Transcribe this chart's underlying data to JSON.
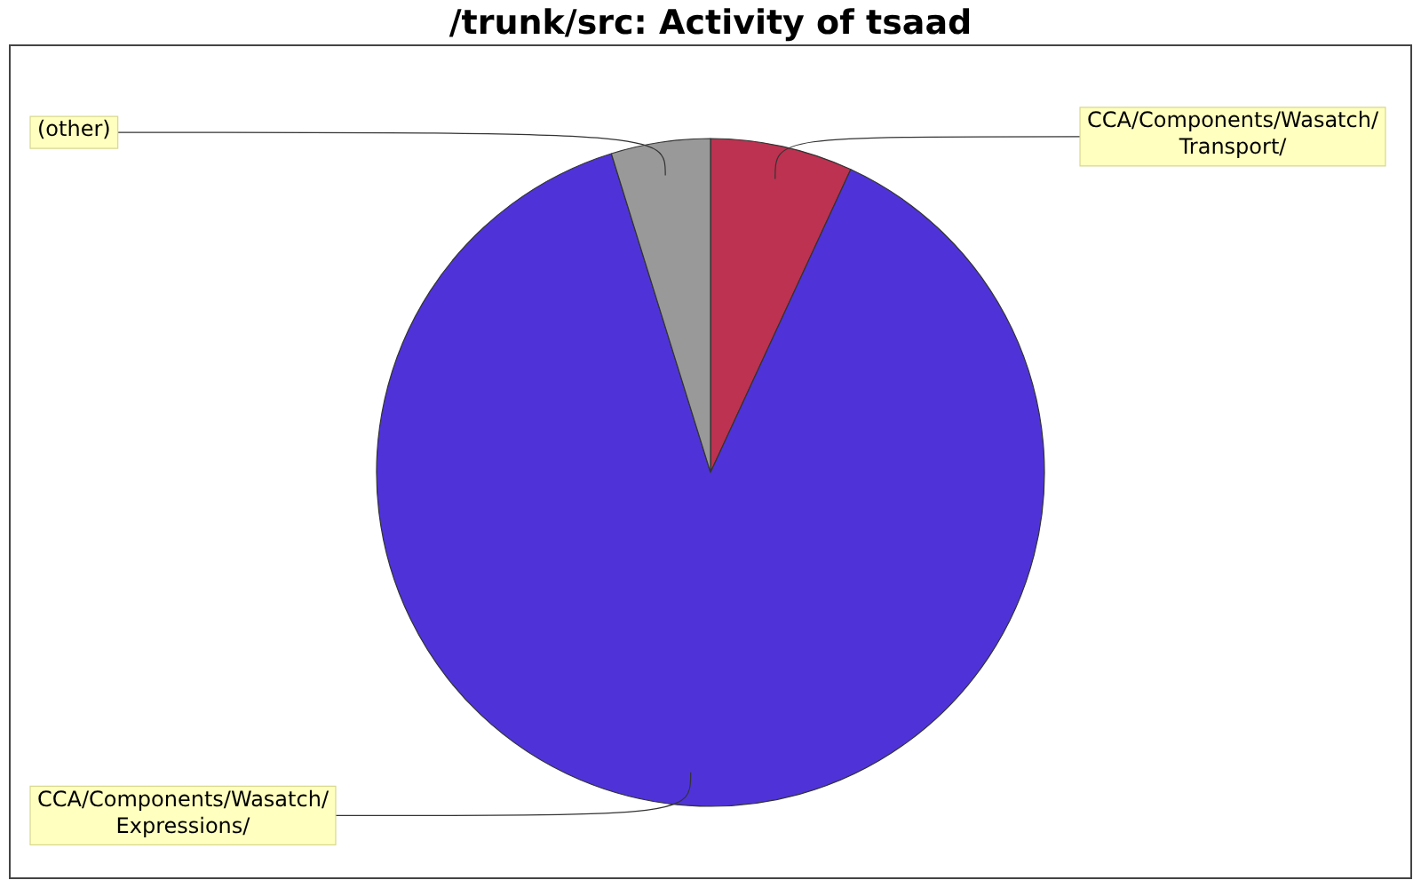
{
  "chart_data": {
    "type": "pie",
    "title": "/trunk/src: Activity of tsaad",
    "categories": [
      "CCA/Components/Wasatch/Transport/",
      "CCA/Components/Wasatch/Expressions/",
      "(other)"
    ],
    "values": [
      6.9,
      88.3,
      4.8
    ],
    "colors": [
      "#bc3250",
      "#4f33d9",
      "#999999"
    ],
    "legend": false
  }
}
